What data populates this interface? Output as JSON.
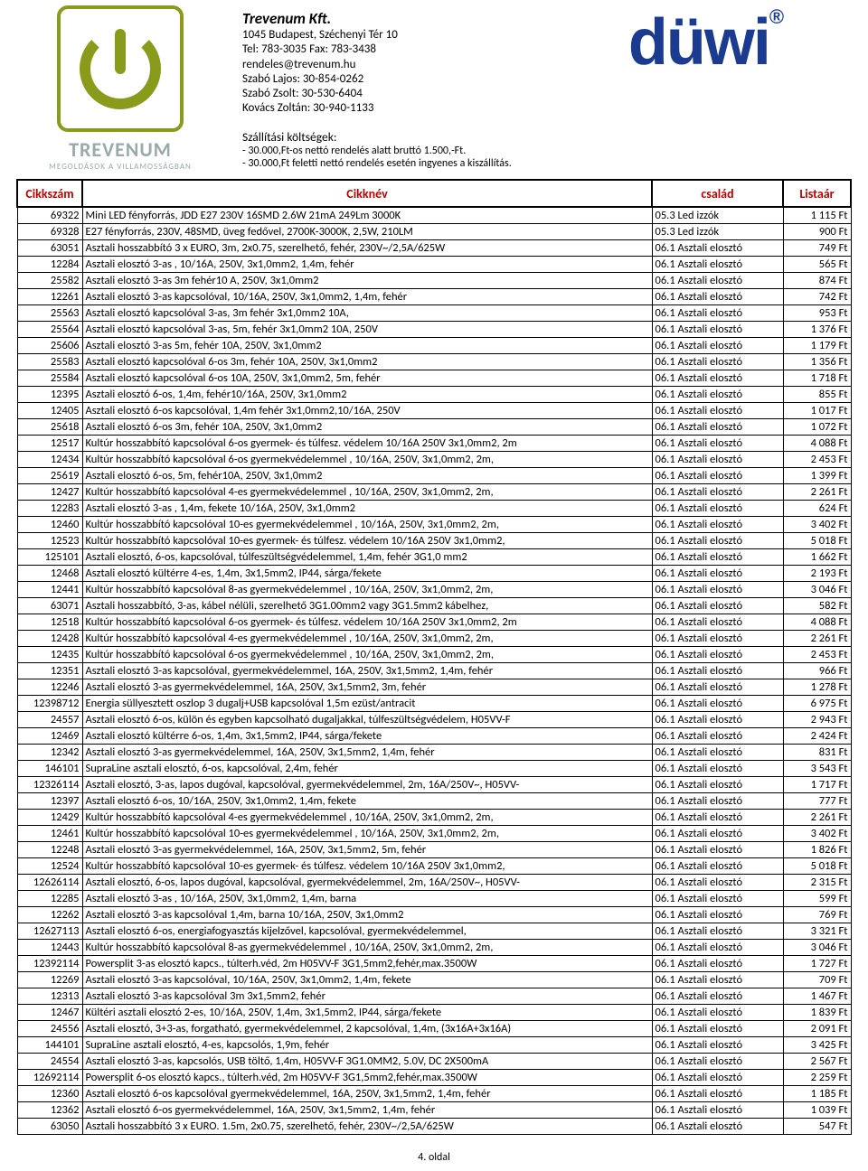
{
  "header": {
    "company_name": "Trevenum Kft.",
    "address": "1045 Budapest, Széchenyi Tér 10",
    "phone": "Tel: 783-3035 Fax: 783-3438",
    "email": "rendeles@trevenum.hu",
    "contact1": "Szabó Lajos: 30-854-0262",
    "contact2": "Szabó Zsolt: 30-530-6404",
    "contact3": "Kovács Zoltán: 30-940-1133",
    "brand_main": "TREVENUM",
    "brand_sub": "MEGOLDÁSOK A VILLAMOSSÁGBAN",
    "ship_title": "Szállítási költségek:",
    "ship_l1": "- 30.000,Ft-os nettó rendelés alatt bruttó 1.500,-Ft.",
    "ship_l2": "- 30.000,Ft feletti nettó rendelés esetén ingyenes a kiszállítás.",
    "duwi": "düwi"
  },
  "columns": {
    "c1": "Cikkszám",
    "c2": "Cikknév",
    "c3": "család",
    "c4": "Listaár"
  },
  "rows": [
    [
      "69322",
      "Mini LED fényforrás, JDD E27 230V 16SMD 2.6W 21mA 249Lm 3000K",
      "05.3 Led izzók",
      "1 115 Ft"
    ],
    [
      "69328",
      "E27 fényforrás, 230V, 48SMD, üveg fedővel, 2700K-3000K, 2,5W, 210LM",
      "05.3 Led izzók",
      "900 Ft"
    ],
    [
      "63051",
      "Asztali hosszabbító 3 x EURO, 3m, 2x0.75, szerelhető, fehér, 230V~/2,5A/625W",
      "06.1 Asztali elosztó",
      "749 Ft"
    ],
    [
      "12284",
      "Asztali elosztó 3-as , 10/16A, 250V, 3x1,0mm2, 1,4m, fehér",
      "06.1 Asztali elosztó",
      "565 Ft"
    ],
    [
      "25582",
      "Asztali elosztó 3-as 3m fehér10 A, 250V, 3x1,0mm2",
      "06.1 Asztali elosztó",
      "874 Ft"
    ],
    [
      "12261",
      "Asztali elosztó 3-as kapcsolóval, 10/16A, 250V, 3x1,0mm2, 1,4m, fehér",
      "06.1 Asztali elosztó",
      "742 Ft"
    ],
    [
      "25563",
      "Asztali elosztó kapcsolóval 3-as, 3m fehér 3x1,0mm2 10A,",
      "06.1 Asztali elosztó",
      "953 Ft"
    ],
    [
      "25564",
      "Asztali elosztó kapcsolóval 3-as, 5m, fehér 3x1,0mm2 10A, 250V",
      "06.1 Asztali elosztó",
      "1 376 Ft"
    ],
    [
      "25606",
      "Asztali elosztó 3-as 5m, fehér 10A, 250V, 3x1,0mm2",
      "06.1 Asztali elosztó",
      "1 179 Ft"
    ],
    [
      "25583",
      "Asztali elosztó kapcsolóval 6-os 3m, fehér 10A, 250V, 3x1,0mm2",
      "06.1 Asztali elosztó",
      "1 356 Ft"
    ],
    [
      "25584",
      "Asztali elosztó kapcsolóval 6-os 10A, 250V, 3x1,0mm2, 5m, fehér",
      "06.1 Asztali elosztó",
      "1 718 Ft"
    ],
    [
      "12395",
      "Asztali elosztó 6-os, 1,4m, fehér10/16A, 250V, 3x1,0mm2",
      "06.1 Asztali elosztó",
      "855 Ft"
    ],
    [
      "12405",
      "Asztali elosztó 6-os kapcsolóval, 1,4m fehér 3x1,0mm2,10/16A, 250V",
      "06.1 Asztali elosztó",
      "1 017 Ft"
    ],
    [
      "25618",
      "Asztali elosztó 6-os  3m, fehér 10A, 250V, 3x1,0mm2",
      "06.1 Asztali elosztó",
      "1 072 Ft"
    ],
    [
      "12517",
      "Kultúr hosszabbító kapcsolóval 6-os gyermek- és túlfesz. védelem 10/16A 250V 3x1,0mm2, 2m",
      "06.1 Asztali elosztó",
      "4 088 Ft"
    ],
    [
      "12434",
      "Kultúr hosszabbító kapcsolóval 6-os gyermekvédelemmel , 10/16A, 250V, 3x1,0mm2, 2m,",
      "06.1 Asztali elosztó",
      "2 453 Ft"
    ],
    [
      "25619",
      "Asztali elosztó 6-os, 5m, fehér10A, 250V, 3x1,0mm2",
      "06.1 Asztali elosztó",
      "1 399 Ft"
    ],
    [
      "12427",
      "Kultúr hosszabbító kapcsolóval 4-es gyermekvédelemmel , 10/16A, 250V, 3x1,0mm2, 2m,",
      "06.1 Asztali elosztó",
      "2 261 Ft"
    ],
    [
      "12283",
      "Asztali elosztó 3-as , 1,4m, fekete 10/16A, 250V, 3x1,0mm2",
      "06.1 Asztali elosztó",
      "624 Ft"
    ],
    [
      "12460",
      "Kultúr hosszabbító kapcsolóval 10-es gyermekvédelemmel , 10/16A, 250V, 3x1,0mm2, 2m,",
      "06.1 Asztali elosztó",
      "3 402 Ft"
    ],
    [
      "12523",
      "Kultúr hosszabbító kapcsolóval 10-es gyermek- és túlfesz. védelem 10/16A 250V 3x1,0mm2,",
      "06.1 Asztali elosztó",
      "5 018 Ft"
    ],
    [
      "125101",
      "Asztali elosztó, 6-os, kapcsolóval, túlfeszültségvédelemmel, 1,4m, fehér 3G1,0 mm2",
      "06.1 Asztali elosztó",
      "1 662 Ft"
    ],
    [
      "12468",
      "Asztali elosztó kültérre 4-es, 1,4m, 3x1,5mm2, IP44, sárga/fekete",
      "06.1 Asztali elosztó",
      "2 193 Ft"
    ],
    [
      "12441",
      "Kultúr hosszabbító kapcsolóval 8-as gyermekvédelemmel , 10/16A, 250V, 3x1,0mm2, 2m,",
      "06.1 Asztali elosztó",
      "3 046 Ft"
    ],
    [
      "63071",
      "Asztali hosszabbító, 3-as, kábel nélüli, szerelhető 3G1.00mm2 vagy 3G1.5mm2 kábelhez,",
      "06.1 Asztali elosztó",
      "582 Ft"
    ],
    [
      "12518",
      "Kultúr hosszabbító kapcsolóval 6-os gyermek- és túlfesz. védelem 10/16A 250V 3x1,0mm2, 2m",
      "06.1 Asztali elosztó",
      "4 088 Ft"
    ],
    [
      "12428",
      "Kultúr hosszabbító kapcsolóval 4-es gyermekvédelemmel , 10/16A, 250V, 3x1,0mm2, 2m,",
      "06.1 Asztali elosztó",
      "2 261 Ft"
    ],
    [
      "12435",
      "Kultúr hosszabbító kapcsolóval 6-os gyermekvédelemmel , 10/16A, 250V, 3x1,0mm2, 2m,",
      "06.1 Asztali elosztó",
      "2 453 Ft"
    ],
    [
      "12351",
      "Asztali elosztó 3-as kapcsolóval, gyermekvédelemmel, 16A, 250V, 3x1,5mm2, 1,4m, fehér",
      "06.1 Asztali elosztó",
      "966 Ft"
    ],
    [
      "12246",
      "Asztali elosztó 3-as gyermekvédelemmel, 16A, 250V, 3x1,5mm2, 3m, fehér",
      "06.1 Asztali elosztó",
      "1 278 Ft"
    ],
    [
      "12398712",
      "Energia süllyesztett oszlop 3 dugalj+USB kapcsolóval 1,5m ezüst/antracit",
      "06.1 Asztali elosztó",
      "6 975 Ft"
    ],
    [
      "24557",
      "Asztali elosztó 6-os, külön és egyben kapcsolható dugaljakkal, túlfeszültségvédelem, H05VV-F",
      "06.1 Asztali elosztó",
      "2 943 Ft"
    ],
    [
      "12469",
      "Asztali elosztó kültérre 6-os, 1,4m, 3x1,5mm2, IP44, sárga/fekete",
      "06.1 Asztali elosztó",
      "2 424 Ft"
    ],
    [
      "12342",
      "Asztali elosztó 3-as gyermekvédelemmel, 16A, 250V, 3x1,5mm2, 1,4m, fehér",
      "06.1 Asztali elosztó",
      "831 Ft"
    ],
    [
      "146101",
      "SupraLine asztali elosztó, 6-os, kapcsolóval, 2,4m, fehér",
      "06.1 Asztali elosztó",
      "3 543 Ft"
    ],
    [
      "12326114",
      "Asztali elosztó, 3-as, lapos dugóval, kapcsolóval, gyermekvédelemmel, 2m, 16A/250V~, H05VV-",
      "06.1 Asztali elosztó",
      "1 717 Ft"
    ],
    [
      "12397",
      "Asztali elosztó 6-os, 10/16A, 250V, 3x1,0mm2, 1,4m, fekete",
      "06.1 Asztali elosztó",
      "777 Ft"
    ],
    [
      "12429",
      "Kultúr hosszabbító kapcsolóval 4-es gyermekvédelemmel , 10/16A, 250V, 3x1,0mm2, 2m,",
      "06.1 Asztali elosztó",
      "2 261 Ft"
    ],
    [
      "12461",
      "Kultúr hosszabbító kapcsolóval 10-es gyermekvédelemmel , 10/16A, 250V, 3x1,0mm2, 2m,",
      "06.1 Asztali elosztó",
      "3 402 Ft"
    ],
    [
      "12248",
      "Asztali elosztó 3-as gyermekvédelemmel, 16A, 250V, 3x1,5mm2, 5m, fehér",
      "06.1 Asztali elosztó",
      "1 826 Ft"
    ],
    [
      "12524",
      "Kultúr hosszabbító kapcsolóval 10-es gyermek- és túlfesz. védelem 10/16A 250V 3x1,0mm2,",
      "06.1 Asztali elosztó",
      "5 018 Ft"
    ],
    [
      "12626114",
      "Asztali elosztó, 6-os, lapos dugóval, kapcsolóval, gyermekvédelemmel, 2m, 16A/250V~, H05VV-",
      "06.1 Asztali elosztó",
      "2 315 Ft"
    ],
    [
      "12285",
      "Asztali elosztó 3-as , 10/16A, 250V, 3x1,0mm2, 1,4m, barna",
      "06.1 Asztali elosztó",
      "599 Ft"
    ],
    [
      "12262",
      "Asztali elosztó 3-as kapcsolóval 1,4m, barna 10/16A, 250V, 3x1,0mm2",
      "06.1 Asztali elosztó",
      "769 Ft"
    ],
    [
      "12627113",
      "Asztali elosztó 6-os, energiafogyasztás kijelzővel, kapcsolóval, gyermekvédelemmel,",
      "06.1 Asztali elosztó",
      "3 321 Ft"
    ],
    [
      "12443",
      "Kultúr hosszabbító kapcsolóval 8-as gyermekvédelemmel , 10/16A, 250V, 3x1,0mm2, 2m,",
      "06.1 Asztali elosztó",
      "3 046 Ft"
    ],
    [
      "12392114",
      "Powersplit 3-as elosztó kapcs., túlterh.véd, 2m H05VV-F 3G1,5mm2,fehér,max.3500W",
      "06.1 Asztali elosztó",
      "1 727 Ft"
    ],
    [
      "12269",
      "Asztali elosztó 3-as kapcsolóval, 10/16A, 250V, 3x1,0mm2, 1,4m, fekete",
      "06.1 Asztali elosztó",
      "709 Ft"
    ],
    [
      "12313",
      "Asztali elosztó 3-as kapcsolóval 3m 3x1,5mm2, fehér",
      "06.1 Asztali elosztó",
      "1 467 Ft"
    ],
    [
      "12467",
      "Kültéri asztali elosztó 2-es, 10/16A, 250V, 1,4m, 3x1,5mm2, IP44, sárga/fekete",
      "06.1 Asztali elosztó",
      "1 839 Ft"
    ],
    [
      "24556",
      "Asztali elosztó, 3+3-as, forgatható, gyermekvédelemmel, 2 kapcsolóval, 1,4m, (3x16A+3x16A)",
      "06.1 Asztali elosztó",
      "2 091 Ft"
    ],
    [
      "144101",
      "SupraLine asztali elosztó, 4-es, kapcsolós, 1,9m, fehér",
      "06.1 Asztali elosztó",
      "3 425 Ft"
    ],
    [
      "24554",
      "Asztali elosztó 3-as, kapcsolós, USB töltő, 1,4m, H05VV-F 3G1.0MM2, 5.0V, DC 2X500mA",
      "06.1 Asztali elosztó",
      "2 567 Ft"
    ],
    [
      "12692114",
      "Powersplit 6-os elosztó kapcs., túlterh.véd, 2m H05VV-F 3G1,5mm2,fehér,max.3500W",
      "06.1 Asztali elosztó",
      "2 259 Ft"
    ],
    [
      "12360",
      "Asztali elosztó 6-os kapcsolóval gyermekvédelemmel, 16A, 250V, 3x1,5mm2, 1,4m, fehér",
      "06.1 Asztali elosztó",
      "1 185 Ft"
    ],
    [
      "12362",
      "Asztali elosztó 6-os gyermekvédelemmel, 16A, 250V, 3x1,5mm2, 1,4m, fehér",
      "06.1 Asztali elosztó",
      "1 039 Ft"
    ],
    [
      "63050",
      "Asztali hosszabbító 3 x EURO. 1.5m, 2x0.75, szerelhető, fehér, 230V~/2,5A/625W",
      "06.1 Asztali elosztó",
      "547 Ft"
    ]
  ],
  "footer": "4. oldal"
}
